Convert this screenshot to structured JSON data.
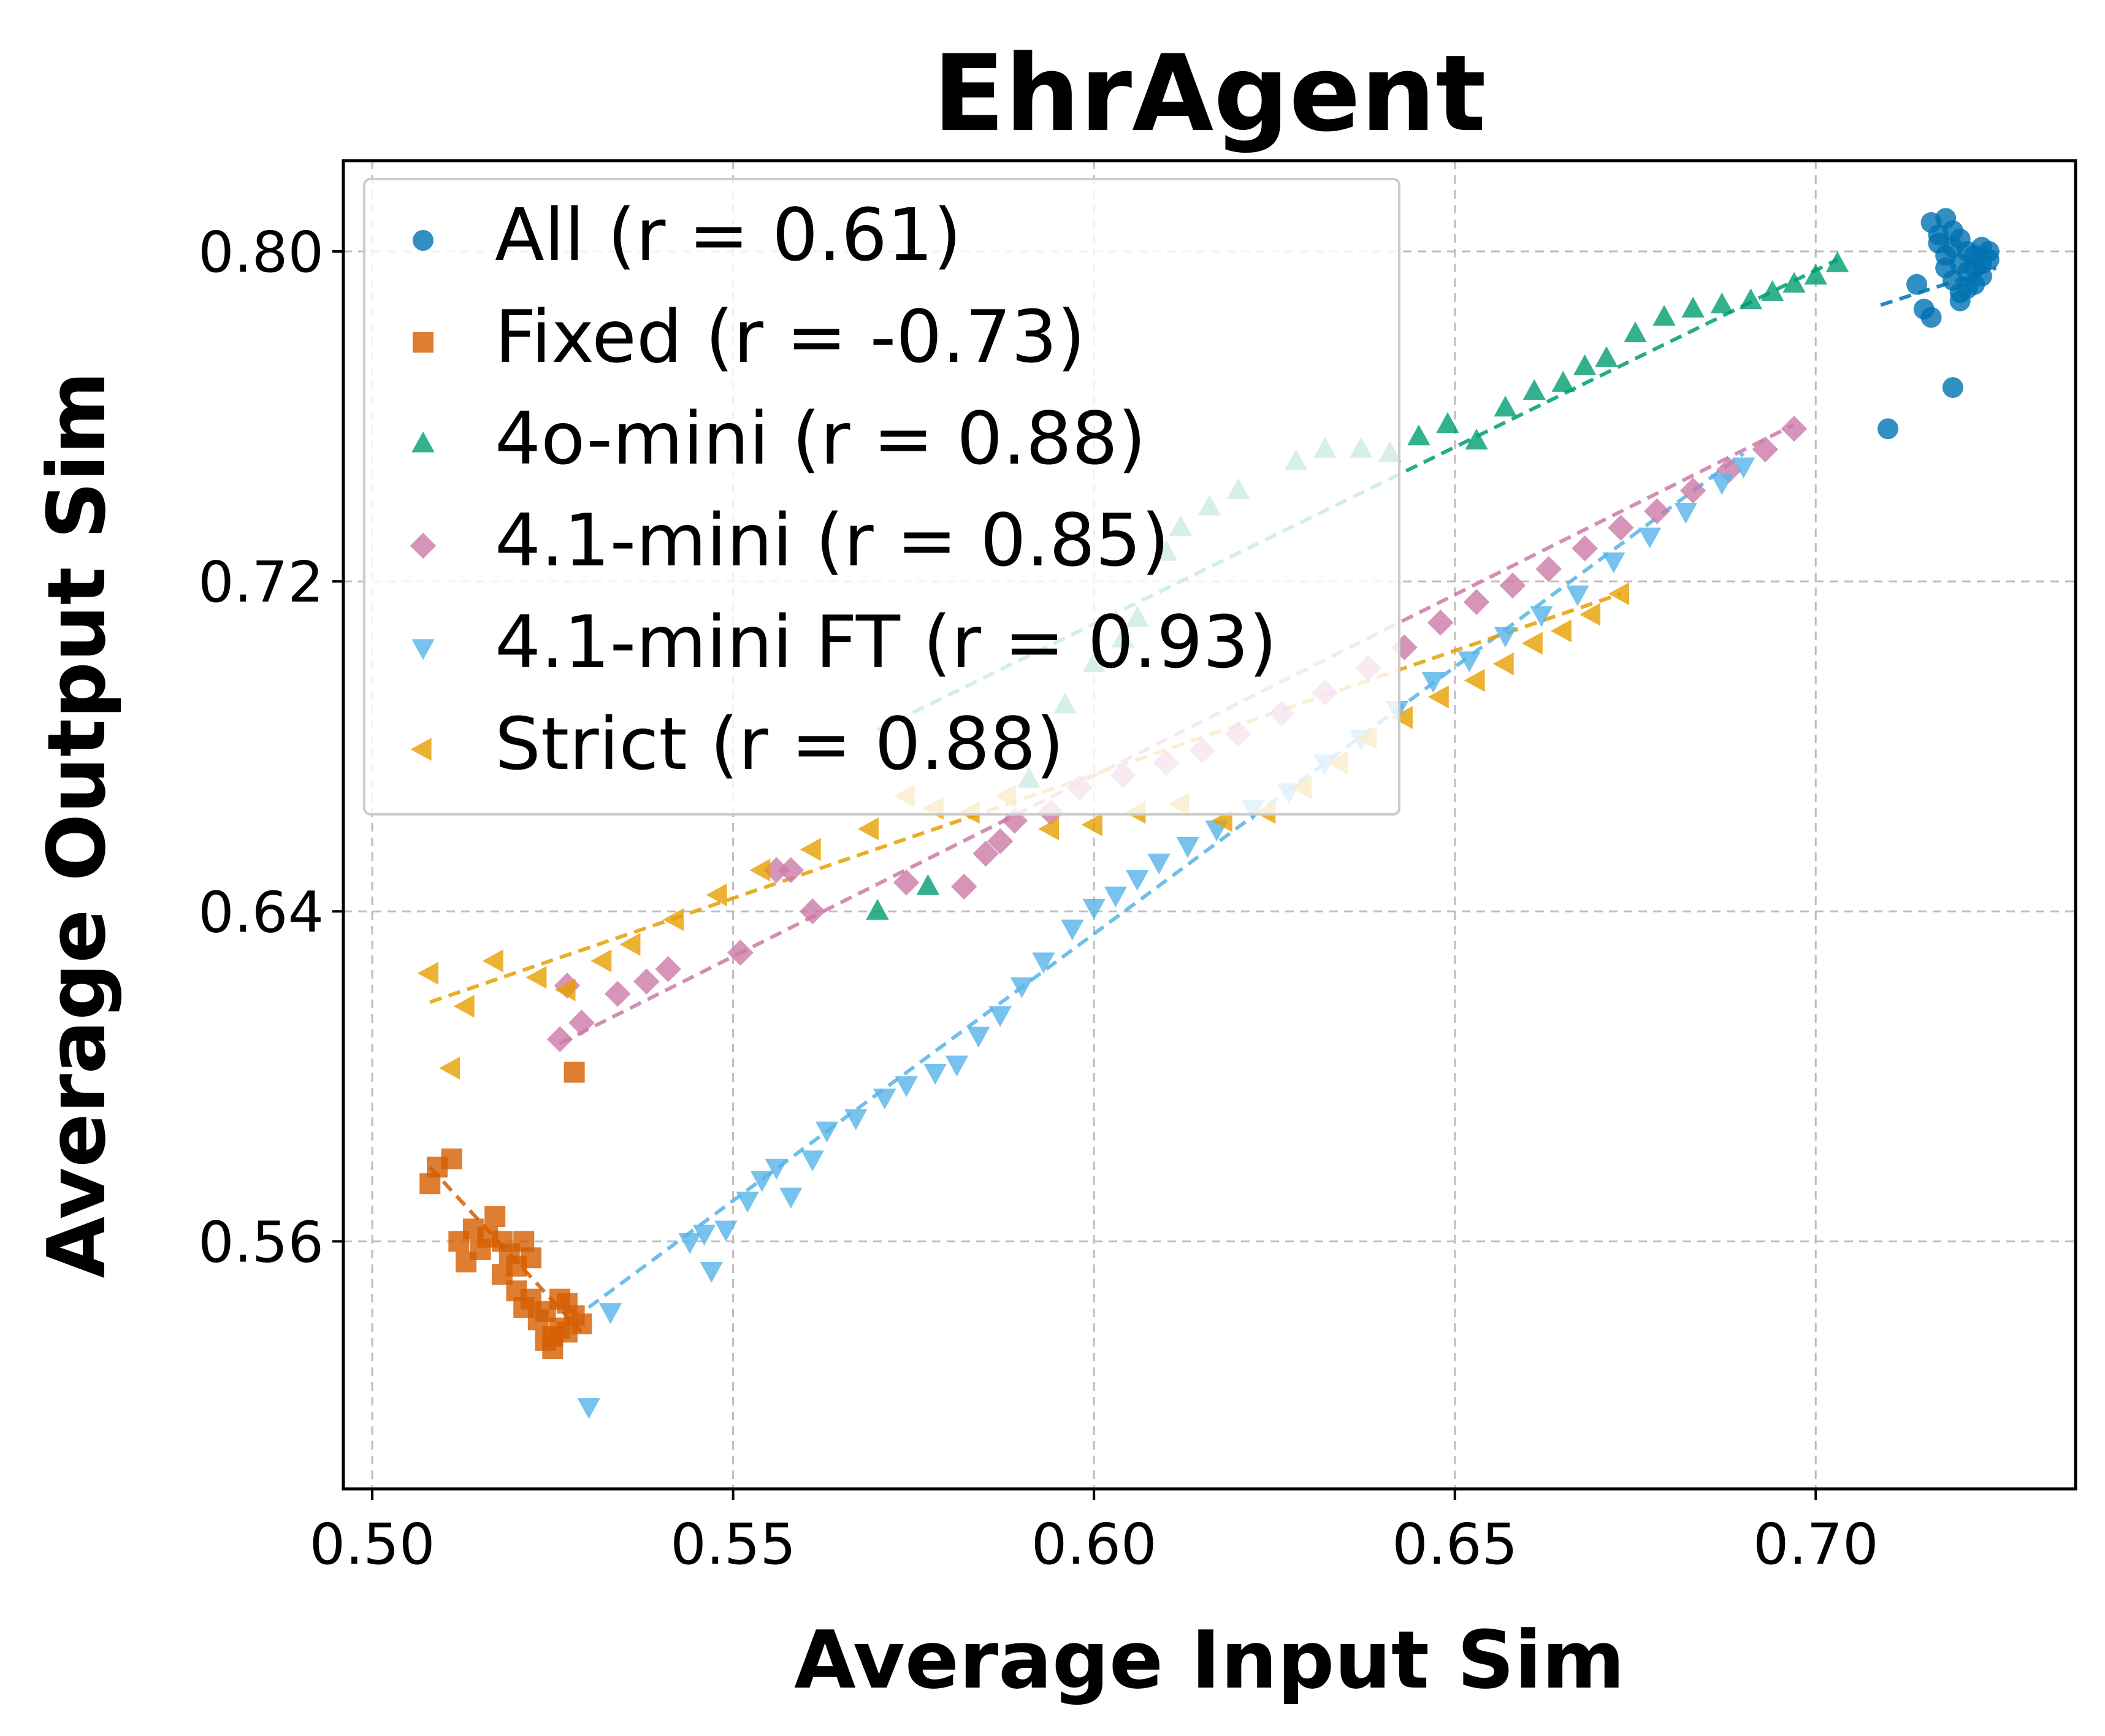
{
  "chart_data": {
    "type": "scatter",
    "title": "EhrAgent",
    "xlabel": "Average Input Sim",
    "ylabel": "Average Output Sim",
    "xlim": [
      0.496,
      0.736
    ],
    "ylim": [
      0.5,
      0.822
    ],
    "xticks": [
      0.5,
      0.55,
      0.6,
      0.65,
      0.7
    ],
    "xtick_labels": [
      "0.50",
      "0.55",
      "0.60",
      "0.65",
      "0.70"
    ],
    "yticks": [
      0.56,
      0.64,
      0.72,
      0.8
    ],
    "ytick_labels": [
      "0.56",
      "0.64",
      "0.72",
      "0.80"
    ],
    "grid": true,
    "legend_position": "top-left",
    "series": [
      {
        "name": "All (r = 0.61)",
        "marker": "circle",
        "color": "#0072b2",
        "fit": {
          "x0": 0.709,
          "x1": 0.725,
          "y0": 0.787,
          "y1": 0.796
        },
        "points": [
          [
            0.716,
            0.807
          ],
          [
            0.718,
            0.808
          ],
          [
            0.719,
            0.805
          ],
          [
            0.717,
            0.802
          ],
          [
            0.72,
            0.803
          ],
          [
            0.721,
            0.8
          ],
          [
            0.722,
            0.799
          ],
          [
            0.723,
            0.801
          ],
          [
            0.724,
            0.798
          ],
          [
            0.722,
            0.796
          ],
          [
            0.72,
            0.797
          ],
          [
            0.718,
            0.799
          ],
          [
            0.721,
            0.795
          ],
          [
            0.723,
            0.794
          ],
          [
            0.719,
            0.793
          ],
          [
            0.72,
            0.79
          ],
          [
            0.722,
            0.792
          ],
          [
            0.724,
            0.8
          ],
          [
            0.717,
            0.804
          ],
          [
            0.721,
            0.791
          ],
          [
            0.718,
            0.796
          ],
          [
            0.723,
            0.797
          ],
          [
            0.719,
            0.801
          ],
          [
            0.714,
            0.792
          ],
          [
            0.715,
            0.786
          ],
          [
            0.716,
            0.784
          ],
          [
            0.72,
            0.788
          ],
          [
            0.719,
            0.767
          ],
          [
            0.71,
            0.757
          ]
        ]
      },
      {
        "name": "Fixed (r = -0.73)",
        "marker": "square",
        "color": "#d55e00",
        "fit": {
          "x0": 0.508,
          "x1": 0.529,
          "y0": 0.578,
          "y1": 0.538
        },
        "points": [
          [
            0.508,
            0.574
          ],
          [
            0.509,
            0.578
          ],
          [
            0.511,
            0.58
          ],
          [
            0.512,
            0.56
          ],
          [
            0.513,
            0.555
          ],
          [
            0.514,
            0.563
          ],
          [
            0.515,
            0.558
          ],
          [
            0.516,
            0.561
          ],
          [
            0.517,
            0.566
          ],
          [
            0.518,
            0.552
          ],
          [
            0.519,
            0.557
          ],
          [
            0.52,
            0.554
          ],
          [
            0.521,
            0.56
          ],
          [
            0.522,
            0.556
          ],
          [
            0.52,
            0.548
          ],
          [
            0.521,
            0.544
          ],
          [
            0.522,
            0.546
          ],
          [
            0.523,
            0.541
          ],
          [
            0.524,
            0.543
          ],
          [
            0.525,
            0.537
          ],
          [
            0.526,
            0.539
          ],
          [
            0.527,
            0.545
          ],
          [
            0.528,
            0.542
          ],
          [
            0.529,
            0.54
          ],
          [
            0.526,
            0.546
          ],
          [
            0.524,
            0.536
          ],
          [
            0.525,
            0.534
          ],
          [
            0.527,
            0.538
          ],
          [
            0.528,
            0.601
          ],
          [
            0.518,
            0.56
          ]
        ]
      },
      {
        "name": "4o-mini (r = 0.88)",
        "marker": "triangle-up",
        "color": "#009e73",
        "fit": {
          "x0": 0.57,
          "x1": 0.703,
          "y0": 0.684,
          "y1": 0.798
        },
        "points": [
          [
            0.57,
            0.64
          ],
          [
            0.577,
            0.646
          ],
          [
            0.591,
            0.672
          ],
          [
            0.596,
            0.69
          ],
          [
            0.6,
            0.7
          ],
          [
            0.604,
            0.706
          ],
          [
            0.606,
            0.711
          ],
          [
            0.61,
            0.727
          ],
          [
            0.612,
            0.733
          ],
          [
            0.616,
            0.738
          ],
          [
            0.62,
            0.742
          ],
          [
            0.628,
            0.749
          ],
          [
            0.632,
            0.752
          ],
          [
            0.637,
            0.752
          ],
          [
            0.641,
            0.751
          ],
          [
            0.645,
            0.755
          ],
          [
            0.649,
            0.758
          ],
          [
            0.653,
            0.754
          ],
          [
            0.657,
            0.762
          ],
          [
            0.661,
            0.766
          ],
          [
            0.665,
            0.768
          ],
          [
            0.668,
            0.772
          ],
          [
            0.671,
            0.774
          ],
          [
            0.675,
            0.78
          ],
          [
            0.679,
            0.784
          ],
          [
            0.683,
            0.786
          ],
          [
            0.687,
            0.787
          ],
          [
            0.691,
            0.788
          ],
          [
            0.694,
            0.79
          ],
          [
            0.697,
            0.792
          ],
          [
            0.7,
            0.794
          ],
          [
            0.703,
            0.797
          ]
        ]
      },
      {
        "name": "4.1-mini (r = 0.85)",
        "marker": "diamond",
        "color": "#cc79a7",
        "fit": {
          "x0": 0.526,
          "x1": 0.697,
          "y0": 0.608,
          "y1": 0.758
        },
        "points": [
          [
            0.526,
            0.609
          ],
          [
            0.527,
            0.622
          ],
          [
            0.529,
            0.613
          ],
          [
            0.534,
            0.62
          ],
          [
            0.538,
            0.623
          ],
          [
            0.541,
            0.626
          ],
          [
            0.551,
            0.63
          ],
          [
            0.556,
            0.65
          ],
          [
            0.558,
            0.65
          ],
          [
            0.561,
            0.64
          ],
          [
            0.574,
            0.647
          ],
          [
            0.582,
            0.646
          ],
          [
            0.585,
            0.654
          ],
          [
            0.587,
            0.657
          ],
          [
            0.589,
            0.662
          ],
          [
            0.594,
            0.664
          ],
          [
            0.598,
            0.67
          ],
          [
            0.604,
            0.673
          ],
          [
            0.61,
            0.676
          ],
          [
            0.615,
            0.679
          ],
          [
            0.62,
            0.683
          ],
          [
            0.626,
            0.688
          ],
          [
            0.632,
            0.693
          ],
          [
            0.638,
            0.699
          ],
          [
            0.643,
            0.704
          ],
          [
            0.648,
            0.71
          ],
          [
            0.653,
            0.715
          ],
          [
            0.658,
            0.719
          ],
          [
            0.663,
            0.723
          ],
          [
            0.668,
            0.728
          ],
          [
            0.673,
            0.733
          ],
          [
            0.678,
            0.737
          ],
          [
            0.683,
            0.742
          ],
          [
            0.688,
            0.747
          ],
          [
            0.693,
            0.752
          ],
          [
            0.697,
            0.757
          ]
        ]
      },
      {
        "name": "4.1-mini FT (r = 0.93)",
        "marker": "triangle-down",
        "color": "#56b4e9",
        "fit": {
          "x0": 0.53,
          "x1": 0.69,
          "y0": 0.544,
          "y1": 0.751
        },
        "points": [
          [
            0.53,
            0.52
          ],
          [
            0.533,
            0.543
          ],
          [
            0.544,
            0.56
          ],
          [
            0.546,
            0.562
          ],
          [
            0.547,
            0.553
          ],
          [
            0.549,
            0.563
          ],
          [
            0.552,
            0.57
          ],
          [
            0.554,
            0.575
          ],
          [
            0.556,
            0.578
          ],
          [
            0.558,
            0.571
          ],
          [
            0.561,
            0.58
          ],
          [
            0.563,
            0.587
          ],
          [
            0.567,
            0.59
          ],
          [
            0.571,
            0.595
          ],
          [
            0.574,
            0.598
          ],
          [
            0.578,
            0.601
          ],
          [
            0.581,
            0.603
          ],
          [
            0.584,
            0.61
          ],
          [
            0.587,
            0.615
          ],
          [
            0.59,
            0.622
          ],
          [
            0.593,
            0.628
          ],
          [
            0.597,
            0.636
          ],
          [
            0.6,
            0.641
          ],
          [
            0.603,
            0.644
          ],
          [
            0.606,
            0.648
          ],
          [
            0.609,
            0.652
          ],
          [
            0.613,
            0.656
          ],
          [
            0.617,
            0.66
          ],
          [
            0.622,
            0.665
          ],
          [
            0.627,
            0.669
          ],
          [
            0.632,
            0.676
          ],
          [
            0.637,
            0.682
          ],
          [
            0.642,
            0.689
          ],
          [
            0.647,
            0.696
          ],
          [
            0.652,
            0.701
          ],
          [
            0.657,
            0.707
          ],
          [
            0.662,
            0.712
          ],
          [
            0.667,
            0.717
          ],
          [
            0.672,
            0.725
          ],
          [
            0.677,
            0.731
          ],
          [
            0.682,
            0.737
          ],
          [
            0.687,
            0.744
          ],
          [
            0.69,
            0.748
          ]
        ]
      },
      {
        "name": "Strict (r = 0.88)",
        "marker": "triangle-left",
        "color": "#e69f00",
        "fit": {
          "x0": 0.508,
          "x1": 0.673,
          "y0": 0.618,
          "y1": 0.717
        },
        "points": [
          [
            0.508,
            0.625
          ],
          [
            0.511,
            0.602
          ],
          [
            0.513,
            0.617
          ],
          [
            0.517,
            0.628
          ],
          [
            0.523,
            0.624
          ],
          [
            0.527,
            0.621
          ],
          [
            0.532,
            0.628
          ],
          [
            0.536,
            0.632
          ],
          [
            0.542,
            0.638
          ],
          [
            0.548,
            0.644
          ],
          [
            0.554,
            0.65
          ],
          [
            0.561,
            0.655
          ],
          [
            0.569,
            0.66
          ],
          [
            0.574,
            0.668
          ],
          [
            0.578,
            0.665
          ],
          [
            0.583,
            0.664
          ],
          [
            0.588,
            0.668
          ],
          [
            0.594,
            0.66
          ],
          [
            0.6,
            0.661
          ],
          [
            0.606,
            0.664
          ],
          [
            0.612,
            0.666
          ],
          [
            0.618,
            0.662
          ],
          [
            0.624,
            0.664
          ],
          [
            0.629,
            0.67
          ],
          [
            0.634,
            0.676
          ],
          [
            0.638,
            0.682
          ],
          [
            0.643,
            0.687
          ],
          [
            0.648,
            0.692
          ],
          [
            0.653,
            0.696
          ],
          [
            0.657,
            0.7
          ],
          [
            0.661,
            0.705
          ],
          [
            0.665,
            0.708
          ],
          [
            0.669,
            0.712
          ],
          [
            0.673,
            0.717
          ]
        ]
      }
    ]
  }
}
